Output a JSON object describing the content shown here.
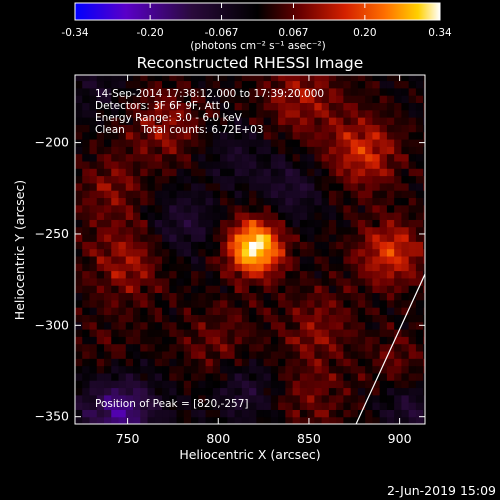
{
  "colors": {
    "background": "#000000",
    "text": "#ffffff",
    "limb_line": "#ffffff",
    "colormap": [
      "#0000ff",
      "#5a00c8",
      "#2a0a3c",
      "#000000",
      "#6b0000",
      "#d42000",
      "#ff7000",
      "#ffd000",
      "#ffffff"
    ]
  },
  "colorbar": {
    "tick_labels": [
      "-0.34",
      "-0.20",
      "-0.067",
      "0.067",
      "0.20",
      "0.34"
    ],
    "unit_label": "(photons cm⁻² s⁻¹ asec⁻²)",
    "range": [
      -0.34,
      0.34
    ]
  },
  "plot": {
    "title": "Reconstructed RHESSI Image",
    "info_lines": [
      "14-Sep-2014 17:38:12.000 to 17:39:20.000",
      "Detectors: 3F 6F 9F, Att 0",
      "Energy Range: 3.0 - 6.0 keV",
      "Clean     Total counts: 6.72E+03"
    ],
    "peak_label": "Position of Peak = [820,-257]",
    "timestamp": "2-Jun-2019 15:09"
  },
  "chart_data": {
    "type": "heatmap",
    "title": "Reconstructed RHESSI Image",
    "xlabel": "Heliocentric X (arcsec)",
    "ylabel": "Heliocentric Y (arcsec)",
    "xlim": [
      721,
      914
    ],
    "ylim": [
      -354,
      -163
    ],
    "xticks": [
      750,
      800,
      850,
      900
    ],
    "yticks": [
      -200,
      -250,
      -300,
      -350
    ],
    "peak": [
      820,
      -257
    ],
    "value_range": [
      -0.34,
      0.34
    ],
    "sources": [
      {
        "x": 820,
        "y": -257,
        "peak": 0.34,
        "width": 11
      },
      {
        "x": 880,
        "y": -205,
        "peak": 0.16,
        "width": 14
      },
      {
        "x": 895,
        "y": -260,
        "peak": 0.17,
        "width": 13
      },
      {
        "x": 845,
        "y": -175,
        "peak": 0.11,
        "width": 16
      },
      {
        "x": 770,
        "y": -190,
        "peak": 0.1,
        "width": 16
      },
      {
        "x": 750,
        "y": -265,
        "peak": 0.11,
        "width": 16
      },
      {
        "x": 740,
        "y": -225,
        "peak": 0.08,
        "width": 14
      },
      {
        "x": 800,
        "y": -310,
        "peak": 0.08,
        "width": 15
      },
      {
        "x": 855,
        "y": -300,
        "peak": 0.09,
        "width": 15
      },
      {
        "x": 850,
        "y": -340,
        "peak": 0.07,
        "width": 16
      },
      {
        "x": 740,
        "y": -320,
        "peak": 0.06,
        "width": 15
      },
      {
        "x": 900,
        "y": -320,
        "peak": 0.07,
        "width": 12
      }
    ],
    "negative_regions": [
      {
        "x": 745,
        "y": -345,
        "peak": -0.2,
        "width": 15
      },
      {
        "x": 780,
        "y": -245,
        "peak": -0.09,
        "width": 14
      },
      {
        "x": 810,
        "y": -205,
        "peak": -0.07,
        "width": 12
      },
      {
        "x": 840,
        "y": -225,
        "peak": -0.09,
        "width": 12
      },
      {
        "x": 905,
        "y": -345,
        "peak": -0.1,
        "width": 10
      },
      {
        "x": 815,
        "y": -335,
        "peak": -0.1,
        "width": 13
      },
      {
        "x": 735,
        "y": -170,
        "peak": -0.06,
        "width": 12
      }
    ],
    "limb_line": [
      [
        876,
        -354
      ],
      [
        914,
        -272
      ]
    ]
  }
}
